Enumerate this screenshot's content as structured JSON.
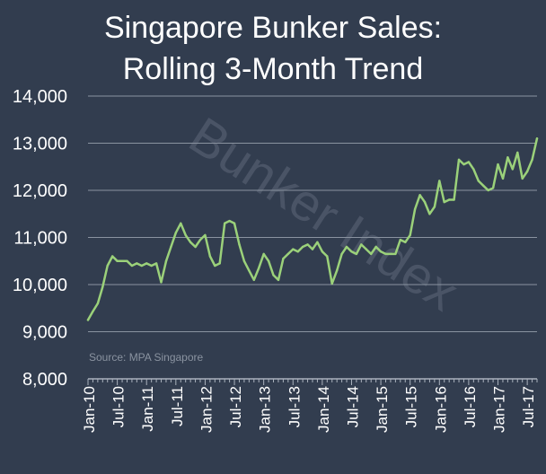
{
  "chart_data": {
    "type": "line",
    "title_line1": "Singapore Bunker Sales:",
    "title_line2": "Rolling 3-Month Trend",
    "watermark": "Bunker Index",
    "source": "Source: MPA Singapore",
    "xlabel": "",
    "ylabel": "",
    "ylim": [
      8000,
      14000
    ],
    "yticks": [
      8000,
      9000,
      10000,
      11000,
      12000,
      13000,
      14000
    ],
    "ytick_labels": [
      "8,000",
      "9,000",
      "10,000",
      "11,000",
      "12,000",
      "13,000",
      "14,000"
    ],
    "xtick_labels": [
      "Jan-10",
      "Jul-10",
      "Jan-11",
      "Jul-11",
      "Jan-12",
      "Jul-12",
      "Jan-13",
      "Jul-13",
      "Jan-14",
      "Jul-14",
      "Jan-15",
      "Jul-15",
      "Jan-16",
      "Jul-16",
      "Jan-17",
      "Jul-17"
    ],
    "xtick_step": 6,
    "grid": true,
    "legend": "none",
    "colors": {
      "background": "#323d4f",
      "line": "#9bd17a",
      "text": "#ffffff",
      "grid": "#8a93a0",
      "source": "#8a93a0",
      "watermark": "#4a5466"
    },
    "series": [
      {
        "values": [
          9250,
          9430,
          9600,
          9950,
          10400,
          10600,
          10500,
          10500,
          10500,
          10400,
          10450,
          10400,
          10450,
          10400,
          10450,
          10050,
          10500,
          10800,
          11100,
          11300,
          11050,
          10900,
          10800,
          10950,
          11050,
          10600,
          10400,
          10450,
          11300,
          11350,
          11300,
          10850,
          10500,
          10300,
          10100,
          10350,
          10650,
          10500,
          10200,
          10100,
          10550,
          10650,
          10750,
          10700,
          10800,
          10850,
          10750,
          10900,
          10700,
          10600,
          10020,
          10300,
          10650,
          10800,
          10700,
          10650,
          10850,
          10750,
          10650,
          10800,
          10700,
          10650,
          10650,
          10650,
          10950,
          10900,
          11050,
          11600,
          11900,
          11750,
          11500,
          11650,
          12200,
          11750,
          11800,
          11800,
          12650,
          12550,
          12600,
          12450,
          12200,
          12100,
          12000,
          12050,
          12550,
          12250,
          12700,
          12450,
          12800,
          12250,
          12400,
          12650,
          13100
        ]
      }
    ]
  }
}
